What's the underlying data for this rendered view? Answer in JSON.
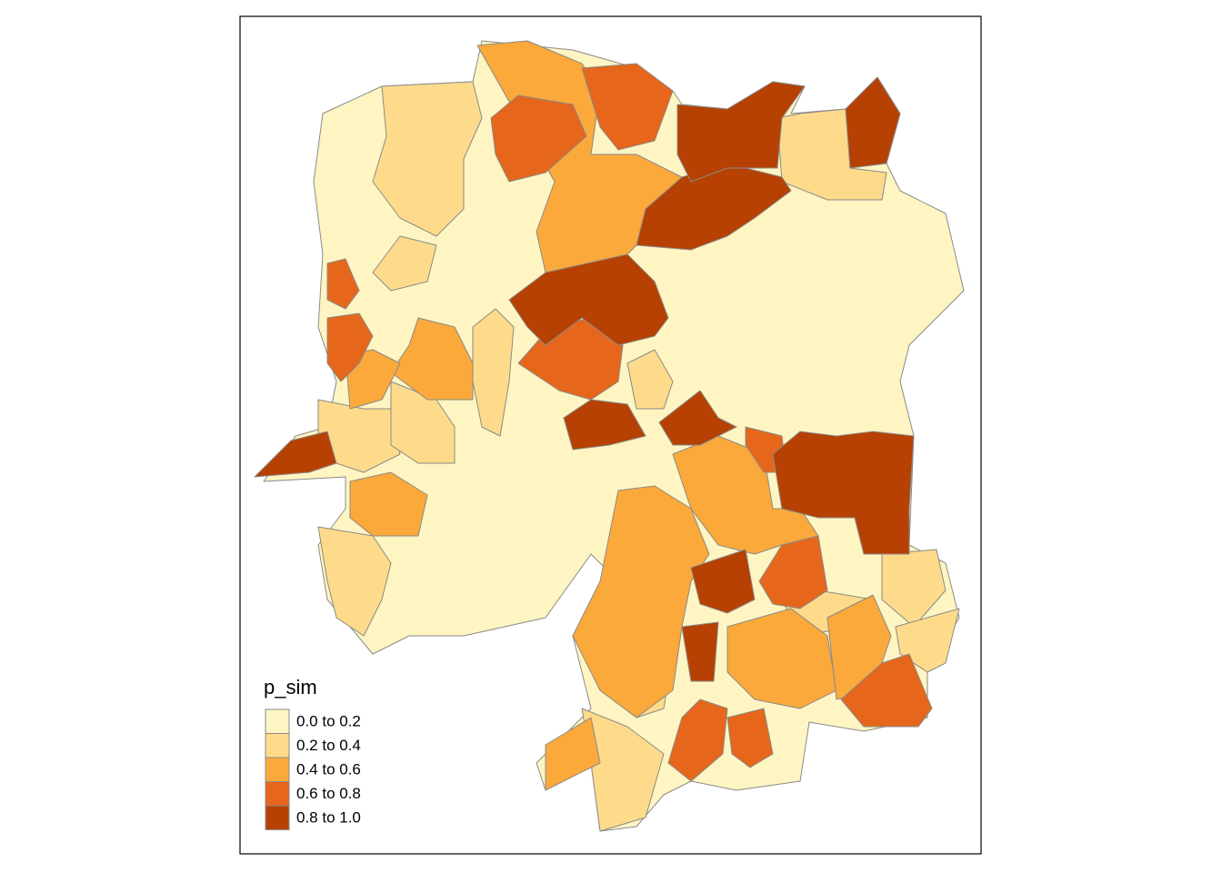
{
  "legend": {
    "title": "p_sim",
    "items": [
      {
        "label": "0.0 to 0.2",
        "color": "#fff5c2"
      },
      {
        "label": "0.2 to 0.4",
        "color": "#fedb8b"
      },
      {
        "label": "0.4 to 0.6",
        "color": "#fba93b"
      },
      {
        "label": "0.6 to 0.8",
        "color": "#e6661b"
      },
      {
        "label": "0.8 to 1.0",
        "color": "#b64102"
      }
    ]
  }
}
